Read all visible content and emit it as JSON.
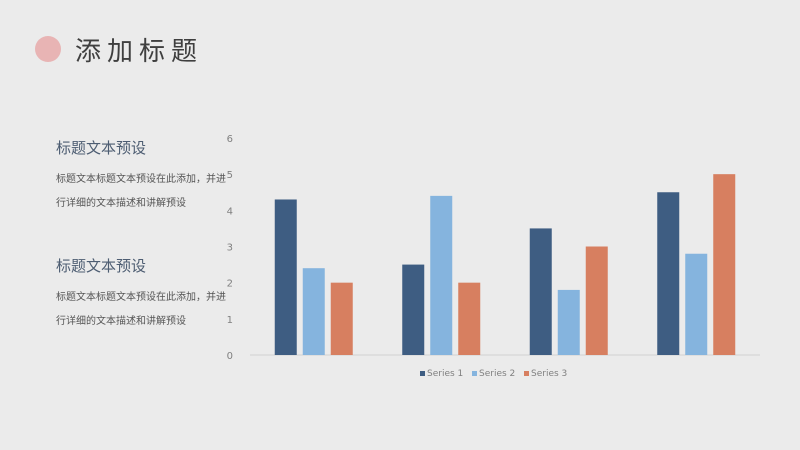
{
  "header": {
    "title": "添加标题",
    "dot_color": "#e8b4b4"
  },
  "text_blocks": [
    {
      "heading": "标题文本预设",
      "body": "标题文本标题文本预设在此添加，并进行详细的文本描述和讲解预设"
    },
    {
      "heading": "标题文本预设",
      "body": "标题文本标题文本预设在此添加，并进行详细的文本描述和讲解预设"
    }
  ],
  "chart_data": {
    "type": "bar",
    "categories": [
      "",
      "",
      "",
      ""
    ],
    "series": [
      {
        "name": "Series 1",
        "values": [
          4.3,
          2.5,
          3.5,
          4.5
        ],
        "color": "#3e5d82"
      },
      {
        "name": "Series 2",
        "values": [
          2.4,
          4.4,
          1.8,
          2.8
        ],
        "color": "#85b4de"
      },
      {
        "name": "Series 3",
        "values": [
          2.0,
          2.0,
          3.0,
          5.0
        ],
        "color": "#d77f60"
      }
    ],
    "ylim": [
      0,
      6
    ],
    "yticks": [
      "0",
      "1",
      "2",
      "3",
      "4",
      "5",
      "6"
    ],
    "grid": false,
    "legend": "bottom"
  }
}
